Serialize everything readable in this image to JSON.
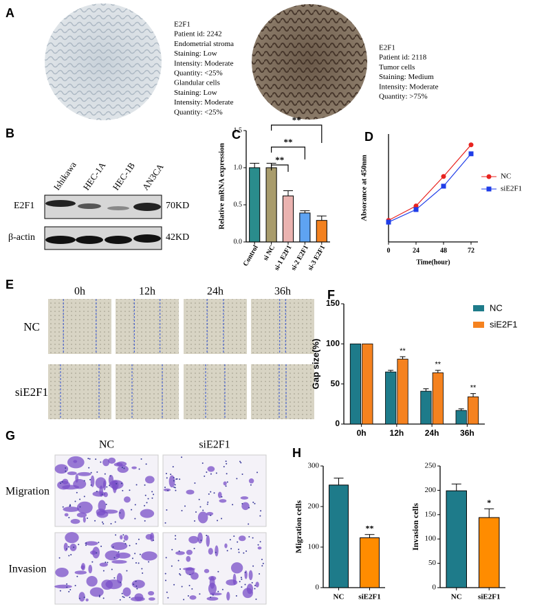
{
  "panel_labels": [
    "A",
    "B",
    "C",
    "D",
    "E",
    "F",
    "G",
    "H"
  ],
  "panel_a": {
    "left_text": [
      "E2F1",
      "Patient id: 2242",
      "Endometrial stroma",
      "Staining: Low",
      "Intensity: Moderate",
      "Quantity: <25%",
      "Glandular cells",
      "Staining: Low",
      "Intensity: Moderate",
      "Quantity: <25%"
    ],
    "right_text": [
      "E2F1",
      "Patient id: 2118",
      "Tumor cells",
      "Staining: Medium",
      "Intensity: Moderate",
      "Quantity: >75%"
    ]
  },
  "panel_b": {
    "lanes": [
      "Ishikawa",
      "HEC-1A",
      "HEC-1B",
      "AN3CA"
    ],
    "rows": [
      "E2F1",
      "β-actin"
    ],
    "sizes": [
      "70KD",
      "42KD"
    ]
  },
  "panel_e": {
    "times": [
      "0h",
      "12h",
      "24h",
      "36h"
    ],
    "groups": [
      "NC",
      "siE2F1"
    ]
  },
  "panel_g": {
    "columns": [
      "NC",
      "siE2F1"
    ],
    "rows": [
      "Migration",
      "Invasion"
    ]
  },
  "chart_data": [
    {
      "type": "bar",
      "ylabel": "Relative mRNA expression",
      "categories": [
        "Control",
        "si NC",
        "si-1 E2F1",
        "si-2 E2F1",
        "si-3 E2F1"
      ],
      "values": [
        1.0,
        1.0,
        0.62,
        0.39,
        0.29
      ],
      "errors": [
        0.06,
        0.06,
        0.07,
        0.03,
        0.06
      ],
      "colors": [
        "#2a8c8c",
        "#a99c6c",
        "#eab3b0",
        "#5ea3f2",
        "#f3811f"
      ],
      "ylim": [
        0,
        1.5
      ],
      "yticks": [
        {
          "value": 0,
          "label": "0.0"
        },
        {
          "value": 0.5,
          "label": "0.5"
        },
        {
          "value": 1,
          "label": "1.0"
        },
        {
          "value": 1.5,
          "label": "1.5"
        }
      ],
      "annotations": [
        "**",
        "**",
        "**"
      ]
    },
    {
      "type": "line",
      "xlabel": "Time(hour)",
      "ylabel": "Absorance at 450nm",
      "x": [
        0,
        24,
        48,
        72
      ],
      "xlim": [
        0,
        78
      ],
      "xticks": [
        0,
        24,
        48,
        72
      ],
      "ylim": [
        0,
        3
      ],
      "series": [
        {
          "name": "NC",
          "color": "#e8231f",
          "marker": "circle",
          "values": [
            0.6,
            1.0,
            1.82,
            2.7
          ]
        },
        {
          "name": "siE2F1",
          "color": "#1f3de8",
          "marker": "square",
          "values": [
            0.55,
            0.9,
            1.55,
            2.45
          ]
        }
      ]
    },
    {
      "type": "bar",
      "ylabel": "Gap size(%)",
      "categories": [
        "0h",
        "12h",
        "24h",
        "36h"
      ],
      "series": [
        {
          "name": "NC",
          "color": "#1e7b8a",
          "values": [
            100,
            65,
            41,
            17
          ],
          "errors": [
            0,
            2,
            3,
            2
          ]
        },
        {
          "name": "siE2F1",
          "color": "#f5821f",
          "values": [
            100,
            81,
            64,
            34
          ],
          "errors": [
            0,
            3,
            3,
            4
          ]
        }
      ],
      "annotations": [
        null,
        "**",
        "**",
        "**"
      ],
      "ylim": [
        0,
        150
      ],
      "yticks": [
        0,
        50,
        100,
        150
      ]
    },
    {
      "type": "bar",
      "ylabel": "Migration cells",
      "categories": [
        "NC",
        "siE2F1"
      ],
      "values": [
        253,
        123
      ],
      "errors": [
        17,
        8
      ],
      "colors": [
        "#1e7b8a",
        "#ff8c00"
      ],
      "annotations": [
        null,
        "**"
      ],
      "ylim": [
        0,
        300
      ],
      "yticks": [
        0,
        100,
        200,
        300
      ]
    },
    {
      "type": "bar",
      "ylabel": "Invasion cells",
      "categories": [
        "NC",
        "siE2F1"
      ],
      "values": [
        199,
        144
      ],
      "errors": [
        14,
        18
      ],
      "colors": [
        "#1e7b8a",
        "#ff8c00"
      ],
      "annotations": [
        null,
        "*"
      ],
      "ylim": [
        0,
        250
      ],
      "yticks": [
        0,
        50,
        100,
        150,
        200,
        250
      ]
    }
  ]
}
